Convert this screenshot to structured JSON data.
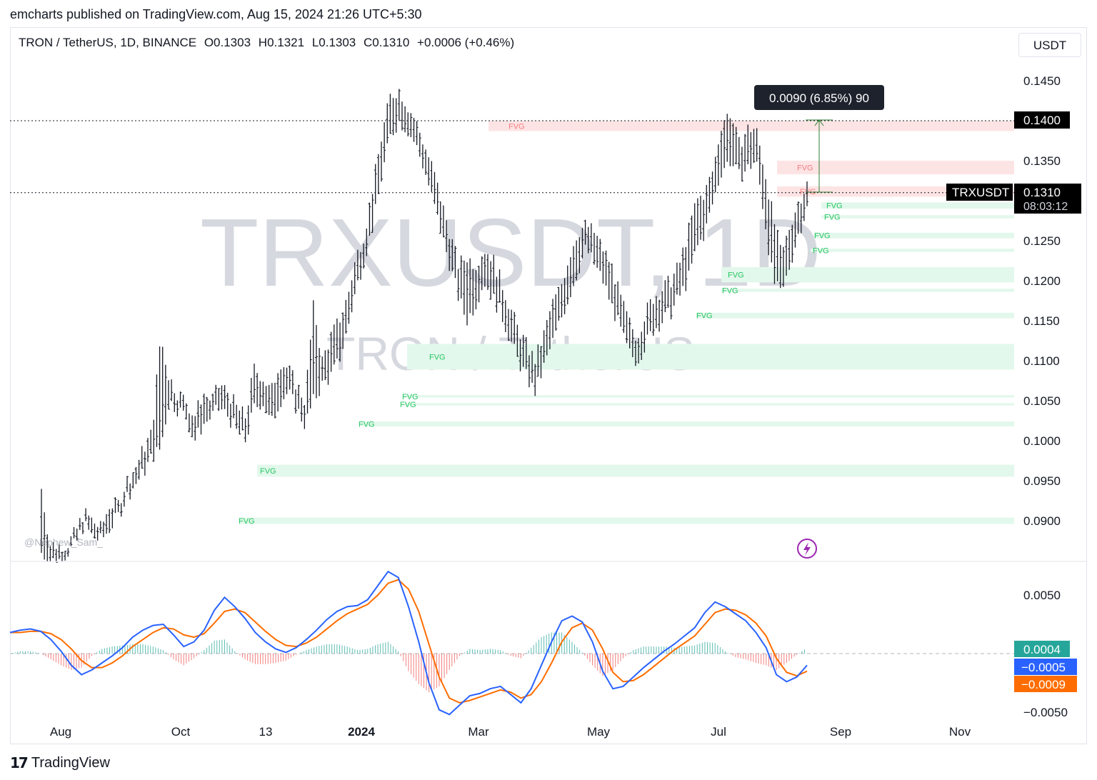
{
  "header": {
    "published_line": "emcharts published on TradingView.com, Aug 15, 2024 21:26 UTC+5:30"
  },
  "legend": {
    "symbol_line": "TRON / TetherUS, 1D, BINANCE",
    "open": "O0.1303",
    "high": "H0.1321",
    "low": "L0.1303",
    "close": "C0.1310",
    "change": "+0.0006 (+0.46%)"
  },
  "currency": "USDT",
  "watermark": {
    "big": "TRXUSDT, 1D",
    "sub": "TRON / TetherUS"
  },
  "author_tag": "@Nephew_Sam_",
  "measure_label": "0.0090 (6.85%) 90",
  "price_labels": {
    "level_top": "0.1400",
    "symbol_tag": "TRXUSDT",
    "last_price": "0.1310",
    "countdown": "08:03:12"
  },
  "macd_labels": {
    "hist": "0.0004",
    "macd": "−0.0005",
    "signal": "−0.0009"
  },
  "footer": {
    "brand": "TradingView"
  },
  "colors": {
    "up": "#131722",
    "fvg_bear_fill": "#fde4e4",
    "fvg_bear_text": "#f77c80",
    "fvg_bull_fill": "#e3f8ec",
    "fvg_bull_text": "#22c55e",
    "macd_line": "#2962ff",
    "signal_line": "#ff6d00",
    "hist_pos": "#26a69a",
    "hist_neg": "#ef5350",
    "measure": "#2e7d32"
  },
  "chart_data": {
    "type": "candlestick",
    "price_axis": {
      "ylim": [
        0.086,
        0.147
      ],
      "ticks": [
        "0.1450",
        "0.1400",
        "0.1350",
        "0.1300",
        "0.1250",
        "0.1200",
        "0.1150",
        "0.1100",
        "0.1050",
        "0.1000",
        "0.0950",
        "0.0900"
      ]
    },
    "time_axis": {
      "ticks": [
        "Aug",
        "Oct",
        "13",
        "2024",
        "Mar",
        "May",
        "Jul",
        "Sep",
        "Nov"
      ],
      "bold": [
        "2024"
      ]
    },
    "ohlc_path": [
      [
        0.086,
        0.094
      ],
      [
        0.085,
        0.087
      ],
      [
        0.085,
        0.087
      ],
      [
        0.086,
        0.087
      ],
      [
        0.087,
        0.0885
      ],
      [
        0.0895,
        0.091
      ],
      [
        0.088,
        0.09
      ],
      [
        0.0875,
        0.089
      ],
      [
        0.089,
        0.092
      ],
      [
        0.0905,
        0.092
      ],
      [
        0.093,
        0.095
      ],
      [
        0.0945,
        0.0965
      ],
      [
        0.096,
        0.099
      ],
      [
        0.098,
        0.101
      ],
      [
        0.099,
        0.113
      ],
      [
        0.105,
        0.108
      ],
      [
        0.104,
        0.106
      ],
      [
        0.103,
        0.105
      ],
      [
        0.1,
        0.103
      ],
      [
        0.102,
        0.106
      ],
      [
        0.103,
        0.105
      ],
      [
        0.104,
        0.107
      ],
      [
        0.103,
        0.106
      ],
      [
        0.101,
        0.104
      ],
      [
        0.1,
        0.103
      ],
      [
        0.104,
        0.109
      ],
      [
        0.105,
        0.108
      ],
      [
        0.102,
        0.106
      ],
      [
        0.105,
        0.11
      ],
      [
        0.106,
        0.109
      ],
      [
        0.104,
        0.107
      ],
      [
        0.102,
        0.105
      ],
      [
        0.105,
        0.117
      ],
      [
        0.107,
        0.11
      ],
      [
        0.108,
        0.113
      ],
      [
        0.11,
        0.115
      ],
      [
        0.114,
        0.118
      ],
      [
        0.119,
        0.123
      ],
      [
        0.123,
        0.126
      ],
      [
        0.127,
        0.132
      ],
      [
        0.133,
        0.138
      ],
      [
        0.138,
        0.143
      ],
      [
        0.14,
        0.144
      ],
      [
        0.139,
        0.142
      ],
      [
        0.137,
        0.14
      ],
      [
        0.134,
        0.137
      ],
      [
        0.13,
        0.134
      ],
      [
        0.126,
        0.13
      ],
      [
        0.122,
        0.126
      ],
      [
        0.118,
        0.122
      ],
      [
        0.115,
        0.123
      ],
      [
        0.117,
        0.122
      ],
      [
        0.12,
        0.124
      ],
      [
        0.118,
        0.123
      ],
      [
        0.116,
        0.12
      ],
      [
        0.113,
        0.117
      ],
      [
        0.11,
        0.114
      ],
      [
        0.108,
        0.112
      ],
      [
        0.106,
        0.11
      ],
      [
        0.109,
        0.113
      ],
      [
        0.112,
        0.117
      ],
      [
        0.115,
        0.119
      ],
      [
        0.118,
        0.123
      ],
      [
        0.121,
        0.126
      ],
      [
        0.124,
        0.127
      ],
      [
        0.122,
        0.126
      ],
      [
        0.12,
        0.124
      ],
      [
        0.117,
        0.122
      ],
      [
        0.114,
        0.118
      ],
      [
        0.111,
        0.115
      ],
      [
        0.11,
        0.113
      ],
      [
        0.112,
        0.116
      ],
      [
        0.114,
        0.118
      ],
      [
        0.115,
        0.119
      ],
      [
        0.116,
        0.12
      ],
      [
        0.118,
        0.122
      ],
      [
        0.12,
        0.126
      ],
      [
        0.124,
        0.13
      ],
      [
        0.126,
        0.131
      ],
      [
        0.13,
        0.134
      ],
      [
        0.134,
        0.14
      ],
      [
        0.135,
        0.141
      ],
      [
        0.133,
        0.137
      ],
      [
        0.134,
        0.139
      ],
      [
        0.135,
        0.139
      ],
      [
        0.128,
        0.134
      ],
      [
        0.12,
        0.128
      ],
      [
        0.118,
        0.123
      ],
      [
        0.122,
        0.127
      ],
      [
        0.126,
        0.13
      ],
      [
        0.129,
        0.1321
      ]
    ],
    "fvg_zones": [
      {
        "kind": "bear",
        "y0": 0.1387,
        "y1": 0.14,
        "label": "FVG"
      },
      {
        "kind": "bear",
        "y0": 0.1333,
        "y1": 0.135,
        "label": "FVG"
      },
      {
        "kind": "bear",
        "y0": 0.1305,
        "y1": 0.1318,
        "label": "FVG"
      },
      {
        "kind": "bull",
        "y0": 0.129,
        "y1": 0.1298,
        "label": "FVG"
      },
      {
        "kind": "bull",
        "y0": 0.1278,
        "y1": 0.1282,
        "label": "FVG"
      },
      {
        "kind": "bull",
        "y0": 0.1253,
        "y1": 0.126,
        "label": "FVG"
      },
      {
        "kind": "bull",
        "y0": 0.1236,
        "y1": 0.124,
        "label": "FVG"
      },
      {
        "kind": "bull",
        "y0": 0.1198,
        "y1": 0.1217,
        "label": "FVG"
      },
      {
        "kind": "bull",
        "y0": 0.1186,
        "y1": 0.119,
        "label": "FVG"
      },
      {
        "kind": "bull",
        "y0": 0.1153,
        "y1": 0.116,
        "label": "FVG"
      },
      {
        "kind": "bull",
        "y0": 0.1089,
        "y1": 0.1121,
        "label": "FVG"
      },
      {
        "kind": "bull",
        "y0": 0.1054,
        "y1": 0.1057,
        "label": "FVG"
      },
      {
        "kind": "bull",
        "y0": 0.1044,
        "y1": 0.1047,
        "label": "FVG"
      },
      {
        "kind": "bull",
        "y0": 0.1018,
        "y1": 0.1024,
        "label": "FVG"
      },
      {
        "kind": "bull",
        "y0": 0.0955,
        "y1": 0.097,
        "label": "FVG"
      },
      {
        "kind": "bull",
        "y0": 0.0896,
        "y1": 0.0904,
        "label": "FVG"
      }
    ],
    "levels": [
      0.14,
      0.131
    ],
    "macd": {
      "ylim": [
        -0.006,
        0.007
      ],
      "ticks": [
        "0.0050",
        "−0.0050"
      ],
      "macd_line": [
        0.0018,
        0.002,
        0.0021,
        0.0019,
        0.0012,
        0.0002,
        -0.001,
        -0.0018,
        -0.0014,
        -0.0008,
        -0.0002,
        0.0005,
        0.0014,
        0.002,
        0.0024,
        0.0025,
        0.0016,
        0.0006,
        0.001,
        0.002,
        0.0037,
        0.0048,
        0.004,
        0.003,
        0.0018,
        0.001,
        0.0004,
        0.0001,
        0.0005,
        0.0012,
        0.002,
        0.0029,
        0.0036,
        0.004,
        0.0041,
        0.0046,
        0.0058,
        0.007,
        0.0065,
        0.004,
        0.001,
        -0.0025,
        -0.0048,
        -0.0052,
        -0.0044,
        -0.0036,
        -0.0034,
        -0.003,
        -0.0028,
        -0.0035,
        -0.0042,
        -0.003,
        -0.001,
        0.001,
        0.0028,
        0.0032,
        0.0027,
        0.001,
        -0.0015,
        -0.003,
        -0.0028,
        -0.002,
        -0.0012,
        -0.0005,
        0.0002,
        0.0008,
        0.0015,
        0.0022,
        0.0035,
        0.0044,
        0.004,
        0.0034,
        0.0028,
        0.0018,
        0.0005,
        -0.0018,
        -0.0024,
        -0.002,
        -0.001
      ],
      "signal_line": [
        0.0018,
        0.0018,
        0.0019,
        0.0019,
        0.0017,
        0.0012,
        0.0004,
        -0.0006,
        -0.0012,
        -0.0012,
        -0.0008,
        -0.0002,
        0.0006,
        0.0012,
        0.0018,
        0.0022,
        0.0021,
        0.0016,
        0.0014,
        0.0017,
        0.0026,
        0.0036,
        0.0038,
        0.0035,
        0.0027,
        0.0019,
        0.0012,
        0.0007,
        0.0006,
        0.0009,
        0.0014,
        0.0021,
        0.0028,
        0.0034,
        0.0038,
        0.0042,
        0.005,
        0.006,
        0.0063,
        0.0055,
        0.0036,
        0.0008,
        -0.002,
        -0.0038,
        -0.0042,
        -0.004,
        -0.0037,
        -0.0034,
        -0.0031,
        -0.0033,
        -0.0038,
        -0.0035,
        -0.0024,
        -0.0008,
        0.001,
        0.0022,
        0.0026,
        0.002,
        0.0004,
        -0.0016,
        -0.0024,
        -0.0023,
        -0.0018,
        -0.0011,
        -0.0004,
        0.0003,
        0.0009,
        0.0015,
        0.0025,
        0.0035,
        0.0038,
        0.0037,
        0.0033,
        0.0026,
        0.0015,
        -0.0004,
        -0.0016,
        -0.0019,
        -0.0015
      ]
    }
  }
}
